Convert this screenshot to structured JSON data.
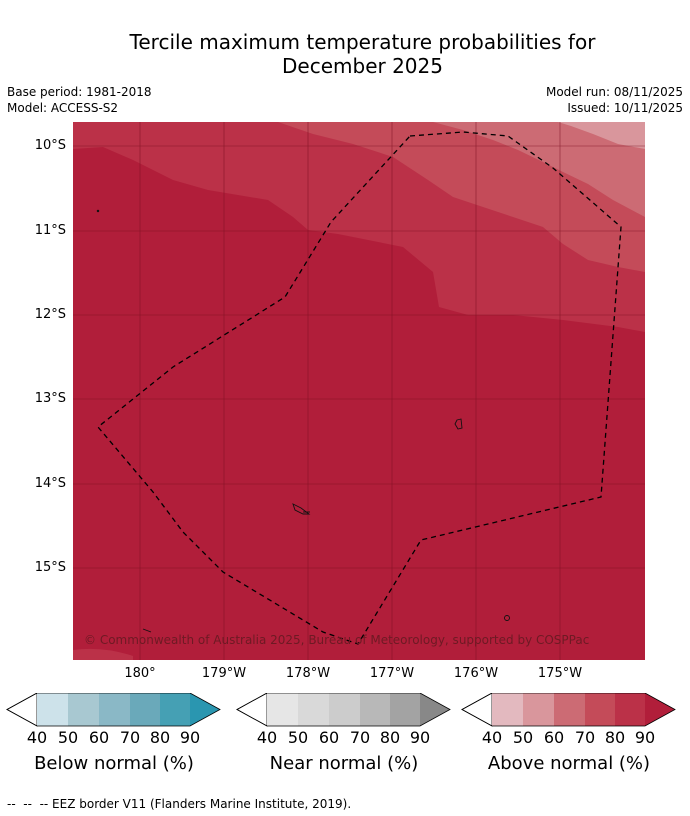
{
  "header": {
    "title_line1": "Tercile maximum temperature probabilities for",
    "title_line2": "December 2025",
    "base_period": "Base period: 1981-2018",
    "model": "Model: ACCESS-S2",
    "model_run": "Model run: 08/11/2025",
    "issued": "Issued: 10/11/2025"
  },
  "map": {
    "lat_labels": [
      "10°S",
      "11°S",
      "12°S",
      "13°S",
      "14°S",
      "15°S"
    ],
    "lon_labels": [
      "180°",
      "179°W",
      "178°W",
      "177°W",
      "176°W",
      "175°W"
    ],
    "copyright": "© Commonwealth of Australia 2025, Bureau of Meteorology, supported by COSPPac",
    "colors": {
      "above_90": "#b11e3a",
      "above_80": "#bb3148",
      "above_70": "#c44b59",
      "above_60": "#cc6b74",
      "above_50": "#d9969c"
    }
  },
  "legends": [
    {
      "label": "Below normal (%)",
      "ticks": [
        "40",
        "50",
        "60",
        "70",
        "80",
        "90"
      ],
      "colors": [
        "#ffffff",
        "#cde2ea",
        "#a8c8d1",
        "#8ab8c6",
        "#6aa9ba",
        "#45a0b4",
        "#2a96b0"
      ]
    },
    {
      "label": "Near normal (%)",
      "ticks": [
        "40",
        "50",
        "60",
        "70",
        "80",
        "90"
      ],
      "colors": [
        "#ffffff",
        "#e6e6e6",
        "#d9d9d9",
        "#cccccc",
        "#b8b8b8",
        "#a3a3a3",
        "#888888"
      ]
    },
    {
      "label": "Above normal (%)",
      "ticks": [
        "40",
        "50",
        "60",
        "70",
        "80",
        "90"
      ],
      "colors": [
        "#ffffff",
        "#e3b9bf",
        "#d9969c",
        "#cc6b74",
        "#c44b59",
        "#bb3148",
        "#b11e3a"
      ]
    }
  ],
  "footer": {
    "eez_note": "--  --  -- EEZ border V11 (Flanders Marine Institute, 2019)."
  }
}
